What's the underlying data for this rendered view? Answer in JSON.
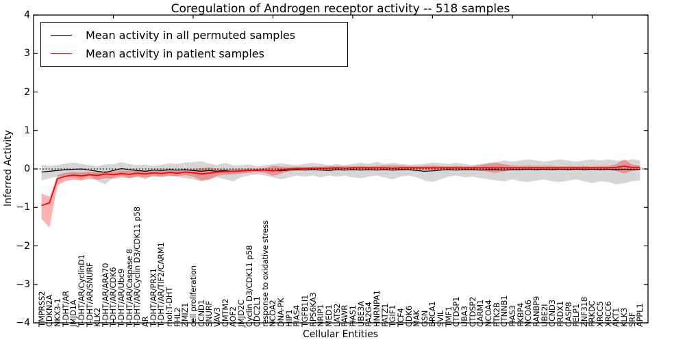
{
  "title": "Coregulation of Androgen receptor activity -- 518 samples",
  "axes": {
    "xlabel": "Cellular Entities",
    "ylabel": "Inferred Activity",
    "ytick_values": [
      4,
      3,
      2,
      1,
      0,
      -1,
      -2,
      -3,
      -4
    ],
    "ytick_labels": [
      "4",
      "3",
      "2",
      "1",
      "0",
      "−1",
      "−2",
      "−3",
      "−4"
    ]
  },
  "legend": {
    "items": [
      {
        "label": "Mean activity in all permuted samples",
        "color": "#000000"
      },
      {
        "label": "Mean activity in patient samples",
        "color": "#ff0000"
      }
    ]
  },
  "colors": {
    "permuted_line": "#000000",
    "permuted_band": "rgba(0,0,0,0.16)",
    "patient_line": "#ff0000",
    "patient_band": "rgba(255,0,0,0.30)",
    "zero_line": "#000000",
    "frame": "#000000"
  },
  "chart_data": {
    "type": "line",
    "title": "Coregulation of Androgen receptor activity -- 518 samples",
    "xlabel": "Cellular Entities",
    "ylabel": "Inferred Activity",
    "ylim": [
      -4,
      4
    ],
    "xlim": [
      0,
      77
    ],
    "xticks": [
      10,
      20,
      30,
      40,
      50,
      60,
      70
    ],
    "grid": false,
    "legend_position": "upper left",
    "zero_line": true,
    "categories": [
      "TMPRSS2",
      "CDKN2A",
      "NKX3-1",
      "T-DHT/AR",
      "JMJD1A",
      "T-DHT/AR/CyclinD1",
      "T-DHT/AR/SNURF",
      "KLK2",
      "T-DHT/AR/ARA70",
      "T-DHT/AR/CDK6",
      "T-DHT/AR/Ubc9",
      "T-DHT/AR/Caspase 8",
      "T-DHT/AR/Cyclin D3/CDK11 p58",
      "AR",
      "T-DHT/AR/PRX1",
      "T-DHT/AR/TIF2/CARM1",
      "mol:T-DHT",
      "FHL2",
      "ZMIZ1",
      "cell proliferation",
      "CCND1",
      "SNURF",
      "VAV3",
      "CMTM2",
      "AOF2",
      "JMJD2C",
      "Cyclin D3/CDK11 p58",
      "CDC2L1",
      "response to oxidative stress",
      "NCOA2",
      "DNA-PK",
      "HIP1",
      "PIAS4",
      "TGFB1I1",
      "RPS6KA3",
      "NRIP1",
      "MED1",
      "LATS2",
      "PAWR",
      "PIAS1",
      "UBE3A",
      "PA2G4",
      "HNRNPA1",
      "PATZ1",
      "TGIF1",
      "TCF4",
      "CDK6",
      "MAK",
      "GSN",
      "BRCA1",
      "SVIL",
      "TMF1",
      "CTDSP1",
      "UBA3",
      "CTDSP2",
      "CARM1",
      "NCOA4",
      "PTK2B",
      "CTNNB1",
      "PIAS3",
      "FKBP4",
      "NCOA6",
      "RANBP9",
      "UBE2I",
      "CCND3",
      "PRDX1",
      "CASP8",
      "PELP1",
      "ZNF318",
      "PRKDC",
      "XRCC5",
      "XRCC6",
      "AKT1",
      "KLK3",
      "SRF",
      "APPL1"
    ],
    "series": [
      {
        "name": "Mean activity in all permuted samples",
        "color": "#000000",
        "width": 1.2,
        "band_color": "rgba(0,0,0,0.16)",
        "values": [
          -0.08,
          -0.06,
          -0.04,
          -0.02,
          -0.01,
          0.0,
          -0.03,
          -0.06,
          -0.09,
          -0.04,
          0.01,
          -0.02,
          -0.04,
          -0.06,
          -0.03,
          -0.04,
          -0.02,
          -0.03,
          -0.02,
          -0.04,
          -0.06,
          -0.04,
          -0.06,
          -0.04,
          -0.07,
          -0.05,
          -0.03,
          -0.04,
          -0.03,
          -0.04,
          -0.05,
          -0.03,
          -0.02,
          -0.03,
          -0.02,
          -0.03,
          -0.04,
          -0.02,
          -0.03,
          -0.02,
          -0.03,
          -0.02,
          -0.03,
          -0.02,
          -0.03,
          -0.02,
          -0.02,
          -0.04,
          -0.06,
          -0.05,
          -0.03,
          -0.02,
          -0.03,
          -0.02,
          -0.02,
          -0.03,
          -0.02,
          -0.02,
          -0.03,
          -0.02,
          -0.02,
          -0.01,
          -0.02,
          -0.01,
          -0.02,
          -0.01,
          -0.02,
          -0.01,
          -0.02,
          -0.01,
          -0.02,
          -0.01,
          -0.02,
          -0.01,
          -0.02,
          -0.01
        ],
        "band_hi": [
          0.1,
          0.08,
          0.1,
          0.14,
          0.17,
          0.13,
          0.1,
          0.07,
          0.12,
          0.12,
          0.18,
          0.13,
          0.1,
          0.11,
          0.08,
          0.1,
          0.15,
          0.13,
          0.17,
          0.18,
          0.2,
          0.14,
          0.1,
          0.16,
          0.1,
          0.09,
          0.12,
          0.07,
          0.1,
          0.12,
          0.15,
          0.12,
          0.1,
          0.13,
          0.16,
          0.13,
          0.1,
          0.13,
          0.1,
          0.13,
          0.16,
          0.13,
          0.18,
          0.13,
          0.16,
          0.13,
          0.11,
          0.12,
          0.13,
          0.17,
          0.15,
          0.13,
          0.16,
          0.13,
          0.1,
          0.13,
          0.16,
          0.18,
          0.22,
          0.19,
          0.22,
          0.25,
          0.22,
          0.19,
          0.22,
          0.25,
          0.22,
          0.19,
          0.22,
          0.25,
          0.22,
          0.25,
          0.22,
          0.22,
          0.25,
          0.22
        ],
        "band_lo": [
          -0.3,
          -0.24,
          -0.2,
          -0.17,
          -0.22,
          -0.27,
          -0.17,
          -0.32,
          -0.4,
          -0.22,
          -0.17,
          -0.24,
          -0.2,
          -0.27,
          -0.17,
          -0.22,
          -0.17,
          -0.2,
          -0.24,
          -0.27,
          -0.32,
          -0.27,
          -0.22,
          -0.27,
          -0.32,
          -0.22,
          -0.17,
          -0.14,
          -0.17,
          -0.22,
          -0.27,
          -0.22,
          -0.17,
          -0.2,
          -0.17,
          -0.22,
          -0.17,
          -0.2,
          -0.17,
          -0.22,
          -0.24,
          -0.2,
          -0.17,
          -0.22,
          -0.27,
          -0.2,
          -0.17,
          -0.22,
          -0.3,
          -0.34,
          -0.27,
          -0.2,
          -0.17,
          -0.22,
          -0.2,
          -0.24,
          -0.27,
          -0.3,
          -0.32,
          -0.27,
          -0.32,
          -0.34,
          -0.3,
          -0.27,
          -0.32,
          -0.34,
          -0.3,
          -0.27,
          -0.32,
          -0.37,
          -0.32,
          -0.34,
          -0.4,
          -0.37,
          -0.32,
          -0.3
        ]
      },
      {
        "name": "Mean activity in patient samples",
        "color": "#ff0000",
        "width": 1.8,
        "band_color": "rgba(255,0,0,0.30)",
        "values": [
          -0.95,
          -0.88,
          -0.25,
          -0.19,
          -0.16,
          -0.18,
          -0.15,
          -0.17,
          -0.13,
          -0.15,
          -0.12,
          -0.14,
          -0.11,
          -0.13,
          -0.1,
          -0.12,
          -0.09,
          -0.11,
          -0.08,
          -0.1,
          -0.13,
          -0.11,
          -0.08,
          -0.07,
          -0.06,
          -0.05,
          -0.04,
          -0.03,
          -0.03,
          -0.05,
          -0.02,
          0.0,
          0.01,
          0.01,
          0.02,
          0.02,
          0.02,
          0.03,
          0.02,
          0.03,
          0.03,
          0.03,
          0.03,
          0.03,
          0.02,
          0.03,
          0.03,
          0.03,
          0.03,
          0.03,
          0.03,
          0.03,
          0.03,
          0.03,
          0.03,
          0.03,
          0.03,
          0.03,
          0.03,
          0.03,
          0.03,
          0.03,
          0.03,
          0.03,
          0.03,
          0.03,
          0.03,
          0.03,
          0.03,
          0.03,
          0.03,
          0.03,
          0.04,
          0.07,
          0.04,
          0.04
        ],
        "band_hi": [
          -0.64,
          -0.72,
          -0.16,
          -0.1,
          -0.08,
          -0.09,
          -0.07,
          -0.08,
          -0.05,
          -0.06,
          -0.04,
          -0.05,
          -0.04,
          -0.04,
          -0.03,
          -0.04,
          -0.02,
          -0.03,
          -0.02,
          -0.01,
          0.02,
          0.04,
          0.0,
          -0.01,
          0.0,
          0.0,
          0.01,
          0.01,
          0.03,
          0.08,
          0.06,
          0.05,
          0.06,
          0.05,
          0.06,
          0.06,
          0.07,
          0.07,
          0.07,
          0.07,
          0.08,
          0.07,
          0.08,
          0.09,
          0.1,
          0.09,
          0.08,
          0.07,
          0.08,
          0.09,
          0.08,
          0.07,
          0.08,
          0.07,
          0.07,
          0.1,
          0.14,
          0.16,
          0.12,
          0.09,
          0.08,
          0.09,
          0.08,
          0.08,
          0.08,
          0.07,
          0.08,
          0.07,
          0.08,
          0.07,
          0.08,
          0.08,
          0.12,
          0.25,
          0.12,
          0.08
        ],
        "band_lo": [
          -1.3,
          -1.52,
          -0.42,
          -0.32,
          -0.28,
          -0.3,
          -0.26,
          -0.28,
          -0.24,
          -0.26,
          -0.22,
          -0.24,
          -0.2,
          -0.22,
          -0.19,
          -0.2,
          -0.18,
          -0.19,
          -0.16,
          -0.2,
          -0.3,
          -0.28,
          -0.18,
          -0.15,
          -0.14,
          -0.12,
          -0.1,
          -0.08,
          -0.1,
          -0.18,
          -0.12,
          -0.06,
          -0.04,
          -0.03,
          -0.02,
          -0.02,
          -0.03,
          -0.01,
          -0.02,
          -0.01,
          -0.02,
          -0.01,
          -0.02,
          -0.03,
          -0.05,
          -0.04,
          -0.02,
          -0.01,
          -0.02,
          -0.03,
          -0.02,
          -0.01,
          -0.02,
          -0.01,
          -0.02,
          -0.04,
          -0.08,
          -0.1,
          -0.06,
          -0.03,
          -0.02,
          -0.03,
          -0.02,
          -0.02,
          -0.03,
          -0.02,
          -0.02,
          -0.02,
          -0.02,
          -0.02,
          -0.02,
          -0.03,
          -0.05,
          -0.12,
          -0.05,
          -0.02
        ]
      }
    ]
  }
}
